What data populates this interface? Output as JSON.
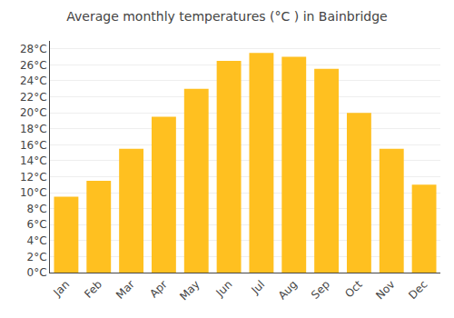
{
  "chart_data": {
    "type": "bar",
    "title": "Average monthly temperatures (°C ) in Bainbridge",
    "categories": [
      "Jan",
      "Feb",
      "Mar",
      "Apr",
      "May",
      "Jun",
      "Jul",
      "Aug",
      "Sep",
      "Oct",
      "Nov",
      "Dec"
    ],
    "values": [
      9.5,
      11.5,
      15.5,
      19.5,
      23.0,
      26.5,
      27.5,
      27.0,
      25.5,
      20.0,
      15.5,
      11.0
    ],
    "color": "#FFC020",
    "ylim": [
      0,
      29
    ],
    "yticks": [
      {
        "value": 0,
        "label": "0°C"
      },
      {
        "value": 2,
        "label": "2°C"
      },
      {
        "value": 4,
        "label": "4°C"
      },
      {
        "value": 6,
        "label": "6°C"
      },
      {
        "value": 8,
        "label": "8°C"
      },
      {
        "value": 10,
        "label": "10°C"
      },
      {
        "value": 12,
        "label": "12°C"
      },
      {
        "value": 14,
        "label": "14°C"
      },
      {
        "value": 16,
        "label": "16°C"
      },
      {
        "value": 18,
        "label": "18°C"
      },
      {
        "value": 20,
        "label": "20°C"
      },
      {
        "value": 22,
        "label": "22°C"
      },
      {
        "value": 24,
        "label": "24°C"
      },
      {
        "value": 26,
        "label": "26°C"
      },
      {
        "value": 28,
        "label": "28°C"
      }
    ],
    "grid": true
  }
}
